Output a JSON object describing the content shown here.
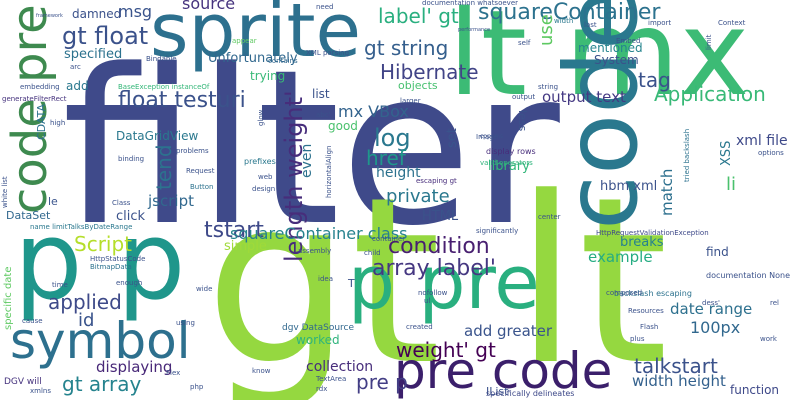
{
  "words": [
    {
      "text": "filter",
      "color": "#3f4a8a"
    },
    {
      "text": "gt lt",
      "color": "#95d840"
    },
    {
      "text": "lt mx",
      "color": "#3cbb75"
    },
    {
      "text": "code",
      "color": "#2a788e"
    },
    {
      "text": "p p",
      "color": "#1f968b"
    },
    {
      "text": "p pre",
      "color": "#29af7f"
    },
    {
      "text": "sprite",
      "color": "#2d708e"
    },
    {
      "text": "code pre",
      "color": "#3e8a4f"
    },
    {
      "text": "pre code",
      "color": "#3b1f6b"
    },
    {
      "text": "symbol",
      "color": "#2d708e"
    },
    {
      "text": "length weight'",
      "color": "#472d7b"
    },
    {
      "text": "gt float",
      "color": "#3b528b"
    },
    {
      "text": "squareContainer",
      "color": "#2c728e"
    },
    {
      "text": "float testuri",
      "color": "#3b528b"
    },
    {
      "text": "gt string",
      "color": "#355f8d"
    },
    {
      "text": "array label'",
      "color": "#453781"
    },
    {
      "text": "condition",
      "color": "#481f70"
    },
    {
      "text": "weight' gt",
      "color": "#440154"
    },
    {
      "text": "gt array",
      "color": "#25838e"
    },
    {
      "text": "Application",
      "color": "#38b977"
    },
    {
      "text": "Hibernate",
      "color": "#414487"
    },
    {
      "text": "label' gt",
      "color": "#29af7f"
    },
    {
      "text": "talkstart",
      "color": "#3b528b"
    },
    {
      "text": "tstart",
      "color": "#3e4989"
    },
    {
      "text": "log",
      "color": "#2a788e"
    },
    {
      "text": "href",
      "color": "#1f988b"
    },
    {
      "text": "tend",
      "color": "#2c728e"
    },
    {
      "text": "Script",
      "color": "#b5de2b"
    },
    {
      "text": "applied",
      "color": "#3e4a89"
    },
    {
      "text": "tag",
      "color": "#3b528b"
    },
    {
      "text": "source",
      "color": "#46337e"
    },
    {
      "text": "msg",
      "color": "#3a548c"
    },
    {
      "text": "private",
      "color": "#2a788e"
    },
    {
      "text": "100px",
      "color": "#31688e"
    },
    {
      "text": "output text",
      "color": "#443983"
    },
    {
      "text": "add greater",
      "color": "#3a548c"
    },
    {
      "text": "squareContainer class",
      "color": "#26828e"
    },
    {
      "text": "date range",
      "color": "#2d708e"
    },
    {
      "text": "pre p",
      "color": "#433e85"
    },
    {
      "text": "width height",
      "color": "#34618d"
    },
    {
      "text": "id",
      "color": "#3a548c"
    },
    {
      "text": "displaying",
      "color": "#482878"
    },
    {
      "text": "collection",
      "color": "#472d7b"
    },
    {
      "text": "function",
      "color": "#3e4989"
    },
    {
      "text": "li",
      "color": "#4ac16d"
    },
    {
      "text": "use",
      "color": "#5ec962"
    },
    {
      "text": "mx VBox",
      "color": "#33638d"
    },
    {
      "text": "match",
      "color": "#2d708e"
    },
    {
      "text": "example",
      "color": "#25ac82"
    },
    {
      "text": "hbm xml",
      "color": "#3b528b"
    },
    {
      "text": "jscript",
      "color": "#31688e"
    },
    {
      "text": "HTML",
      "color": "#3b528b"
    },
    {
      "text": "breaks",
      "color": "#26828e"
    },
    {
      "text": "library",
      "color": "#32b67a"
    },
    {
      "text": "height",
      "color": "#2c728e"
    },
    {
      "text": "even",
      "color": "#2c728e"
    },
    {
      "text": "set",
      "color": "#3a548c"
    },
    {
      "text": "xml file",
      "color": "#3e4989"
    },
    {
      "text": "XSS",
      "color": "#2a788e"
    },
    {
      "text": "click",
      "color": "#3b528b"
    },
    {
      "text": "simple",
      "color": "#a0da39"
    },
    {
      "text": "DataGridView",
      "color": "#2a788e"
    },
    {
      "text": "Unfortunately",
      "color": "#31688e"
    },
    {
      "text": "mentioned",
      "color": "#25848e"
    },
    {
      "text": "System",
      "color": "#3b528b"
    },
    {
      "text": "specified",
      "color": "#2c728e"
    },
    {
      "text": "damned",
      "color": "#3b528b"
    },
    {
      "text": "add",
      "color": "#2a788e"
    },
    {
      "text": "trying",
      "color": "#38b977"
    },
    {
      "text": "objects",
      "color": "#46c06f"
    },
    {
      "text": "list",
      "color": "#3b528b"
    },
    {
      "text": "good",
      "color": "#4ac16d"
    },
    {
      "text": "worked",
      "color": "#2fb47c"
    },
    {
      "text": "find",
      "color": "#3b528b"
    },
    {
      "text": "le",
      "color": "#3a548c"
    },
    {
      "text": "DataSet",
      "color": "#31688e"
    },
    {
      "text": "less",
      "color": "#3b528b"
    },
    {
      "text": "CDATA",
      "color": "#2c728e"
    },
    {
      "text": "IList",
      "color": "#3b528b"
    },
    {
      "text": "T",
      "color": "#3b528b"
    },
    {
      "text": "specific date",
      "color": "#5ec962"
    },
    {
      "text": "DGV will",
      "color": "#46337e"
    },
    {
      "text": "dgv DataSource",
      "color": "#31688e"
    },
    {
      "text": "specifically delineates",
      "color": "#3e4989"
    },
    {
      "text": "documentation None",
      "color": "#3b528b"
    },
    {
      "text": "backslash escaping",
      "color": "#2c728e"
    },
    {
      "text": "HttpRequestValidationException",
      "color": "#3e4989"
    },
    {
      "text": "display rows",
      "color": "#472d7b"
    },
    {
      "text": "valid operators",
      "color": "#2fb47c"
    },
    {
      "text": "documentation whatsoever",
      "color": "#3b528b"
    },
    {
      "text": "BaseException instanceOf",
      "color": "#35b779"
    },
    {
      "text": "XML parsing",
      "color": "#3b528b"
    },
    {
      "text": "generateFilterRect",
      "color": "#46337e"
    },
    {
      "text": "name limitTalksByDateRange",
      "color": "#2a788e"
    },
    {
      "text": "HttpStatusCode",
      "color": "#3b528b"
    },
    {
      "text": "BitmapData",
      "color": "#2c728e"
    },
    {
      "text": "escaping gt",
      "color": "#472d7b"
    },
    {
      "text": "significantly",
      "color": "#3b528b"
    },
    {
      "text": "tried backslash",
      "color": "#2c728e"
    },
    {
      "text": "Bindable",
      "color": "#3b528b"
    },
    {
      "text": "contains",
      "color": "#31688e"
    },
    {
      "text": "appear",
      "color": "#5ec962"
    },
    {
      "text": "prefixes",
      "color": "#2a788e"
    },
    {
      "text": "Request",
      "color": "#3b528b"
    },
    {
      "text": "Button",
      "color": "#2c728e"
    },
    {
      "text": "design",
      "color": "#3b528b"
    },
    {
      "text": "problems",
      "color": "#3b528b"
    },
    {
      "text": "binding",
      "color": "#3b528b"
    },
    {
      "text": "Class",
      "color": "#3b528b"
    },
    {
      "text": "Image",
      "color": "#3b528b"
    },
    {
      "text": "larger",
      "color": "#3b528b"
    },
    {
      "text": "output",
      "color": "#3b528b"
    },
    {
      "text": "string",
      "color": "#3b528b"
    },
    {
      "text": "width",
      "color": "#2a788e"
    },
    {
      "text": "import",
      "color": "#3b528b"
    },
    {
      "text": "Context",
      "color": "#3b528b"
    },
    {
      "text": "Embed",
      "color": "#3b528b"
    },
    {
      "text": "limit",
      "color": "#3b528b"
    },
    {
      "text": "options",
      "color": "#3b528b"
    },
    {
      "text": "need",
      "color": "#3b528b"
    },
    {
      "text": "framework",
      "color": "#3b528b"
    },
    {
      "text": "performance",
      "color": "#3b528b"
    },
    {
      "text": "embedding",
      "color": "#3b528b"
    },
    {
      "text": "high",
      "color": "#3b528b"
    },
    {
      "text": "enough",
      "color": "#3b528b"
    },
    {
      "text": "time",
      "color": "#3b528b"
    },
    {
      "text": "cause",
      "color": "#3b528b"
    },
    {
      "text": "wide",
      "color": "#3b528b"
    },
    {
      "text": "using",
      "color": "#3b528b"
    },
    {
      "text": "Flex",
      "color": "#3b528b"
    },
    {
      "text": "php",
      "color": "#3b528b"
    },
    {
      "text": "xmlns",
      "color": "#3b528b"
    },
    {
      "text": "know",
      "color": "#3b528b"
    },
    {
      "text": "TextArea",
      "color": "#3b528b"
    },
    {
      "text": "rdx",
      "color": "#3b528b"
    },
    {
      "text": "child",
      "color": "#3b528b"
    },
    {
      "text": "assembly",
      "color": "#3b528b"
    },
    {
      "text": "container",
      "color": "#3b528b"
    },
    {
      "text": "idea",
      "color": "#3b528b"
    },
    {
      "text": "nofollow",
      "color": "#3b528b"
    },
    {
      "text": "ul",
      "color": "#3b528b"
    },
    {
      "text": "created",
      "color": "#3b528b"
    },
    {
      "text": "center",
      "color": "#3b528b"
    },
    {
      "text": "composed",
      "color": "#3b528b"
    },
    {
      "text": "Resources",
      "color": "#3b528b"
    },
    {
      "text": "Flash",
      "color": "#3b528b"
    },
    {
      "text": "plus",
      "color": "#3b528b"
    },
    {
      "text": "rel",
      "color": "#3b528b"
    },
    {
      "text": "work",
      "color": "#3b528b"
    },
    {
      "text": "white list",
      "color": "#3b528b"
    },
    {
      "text": "arc",
      "color": "#3b528b"
    },
    {
      "text": "cppcms",
      "color": "#3b528b"
    },
    {
      "text": "self",
      "color": "#3b528b"
    },
    {
      "text": "last",
      "color": "#3b528b"
    },
    {
      "text": "abc'",
      "color": "#3b528b"
    },
    {
      "text": "web",
      "color": "#3b528b"
    },
    {
      "text": "dess'",
      "color": "#3b528b"
    },
    {
      "text": "glow",
      "color": "#3b528b"
    },
    {
      "text": "horizontalAlign",
      "color": "#3b528b"
    }
  ]
}
